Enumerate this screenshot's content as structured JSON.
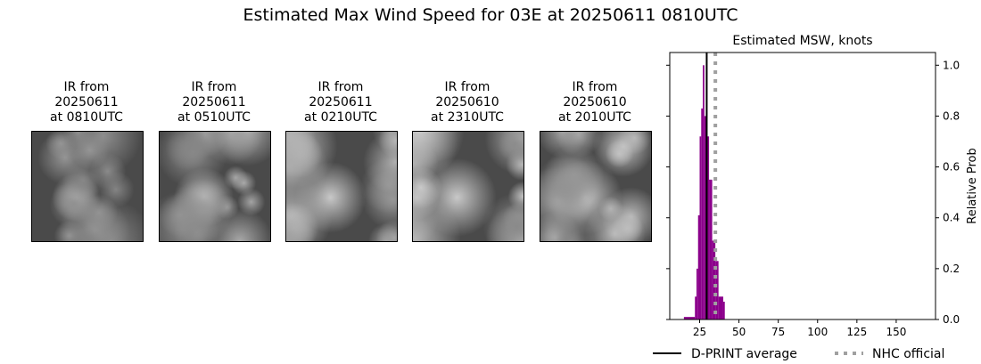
{
  "title": "Estimated Max Wind Speed for 03E at 20250611 0810UTC",
  "panels": [
    {
      "line1": "IR from",
      "line2": "20250611",
      "line3": "at 0810UTC"
    },
    {
      "line1": "IR from",
      "line2": "20250611",
      "line3": "at 0510UTC"
    },
    {
      "line1": "IR from",
      "line2": "20250611",
      "line3": "at 0210UTC"
    },
    {
      "line1": "IR from",
      "line2": "20250610",
      "line3": "at 2310UTC"
    },
    {
      "line1": "IR from",
      "line2": "20250610",
      "line3": "at 2010UTC"
    }
  ],
  "chart_data": {
    "type": "bar",
    "title": "Estimated MSW, knots",
    "ylabel": "Relative Prob",
    "xlim": [
      6,
      175
    ],
    "ylim": [
      0,
      1.05
    ],
    "xticks": [
      25,
      50,
      75,
      100,
      125,
      150
    ],
    "yticks": [
      "0.0",
      "0.2",
      "0.4",
      "0.6",
      "0.8",
      "1.0"
    ],
    "bar_color": "#8b008b",
    "bins": [
      {
        "x0": 15,
        "x1": 22,
        "value": 0.01
      },
      {
        "x0": 22,
        "x1": 23,
        "value": 0.09
      },
      {
        "x0": 23,
        "x1": 24,
        "value": 0.2
      },
      {
        "x0": 24,
        "x1": 25,
        "value": 0.41
      },
      {
        "x0": 25,
        "x1": 26,
        "value": 0.72
      },
      {
        "x0": 26,
        "x1": 27,
        "value": 0.83
      },
      {
        "x0": 27,
        "x1": 28,
        "value": 1.0
      },
      {
        "x0": 28,
        "x1": 29,
        "value": 0.8
      },
      {
        "x0": 29,
        "x1": 31,
        "value": 0.72
      },
      {
        "x0": 31,
        "x1": 33,
        "value": 0.55
      },
      {
        "x0": 33,
        "x1": 35,
        "value": 0.31
      },
      {
        "x0": 35,
        "x1": 37,
        "value": 0.23
      },
      {
        "x0": 37,
        "x1": 40,
        "value": 0.09
      },
      {
        "x0": 40,
        "x1": 41,
        "value": 0.07
      }
    ],
    "lines": [
      {
        "name": "D-PRINT average",
        "x": 29.5,
        "color": "#000000",
        "style": "solid"
      },
      {
        "name": "NHC official",
        "x": 35,
        "color": "#a0a0a0",
        "style": "dotted"
      }
    ],
    "legend": "bottom"
  }
}
